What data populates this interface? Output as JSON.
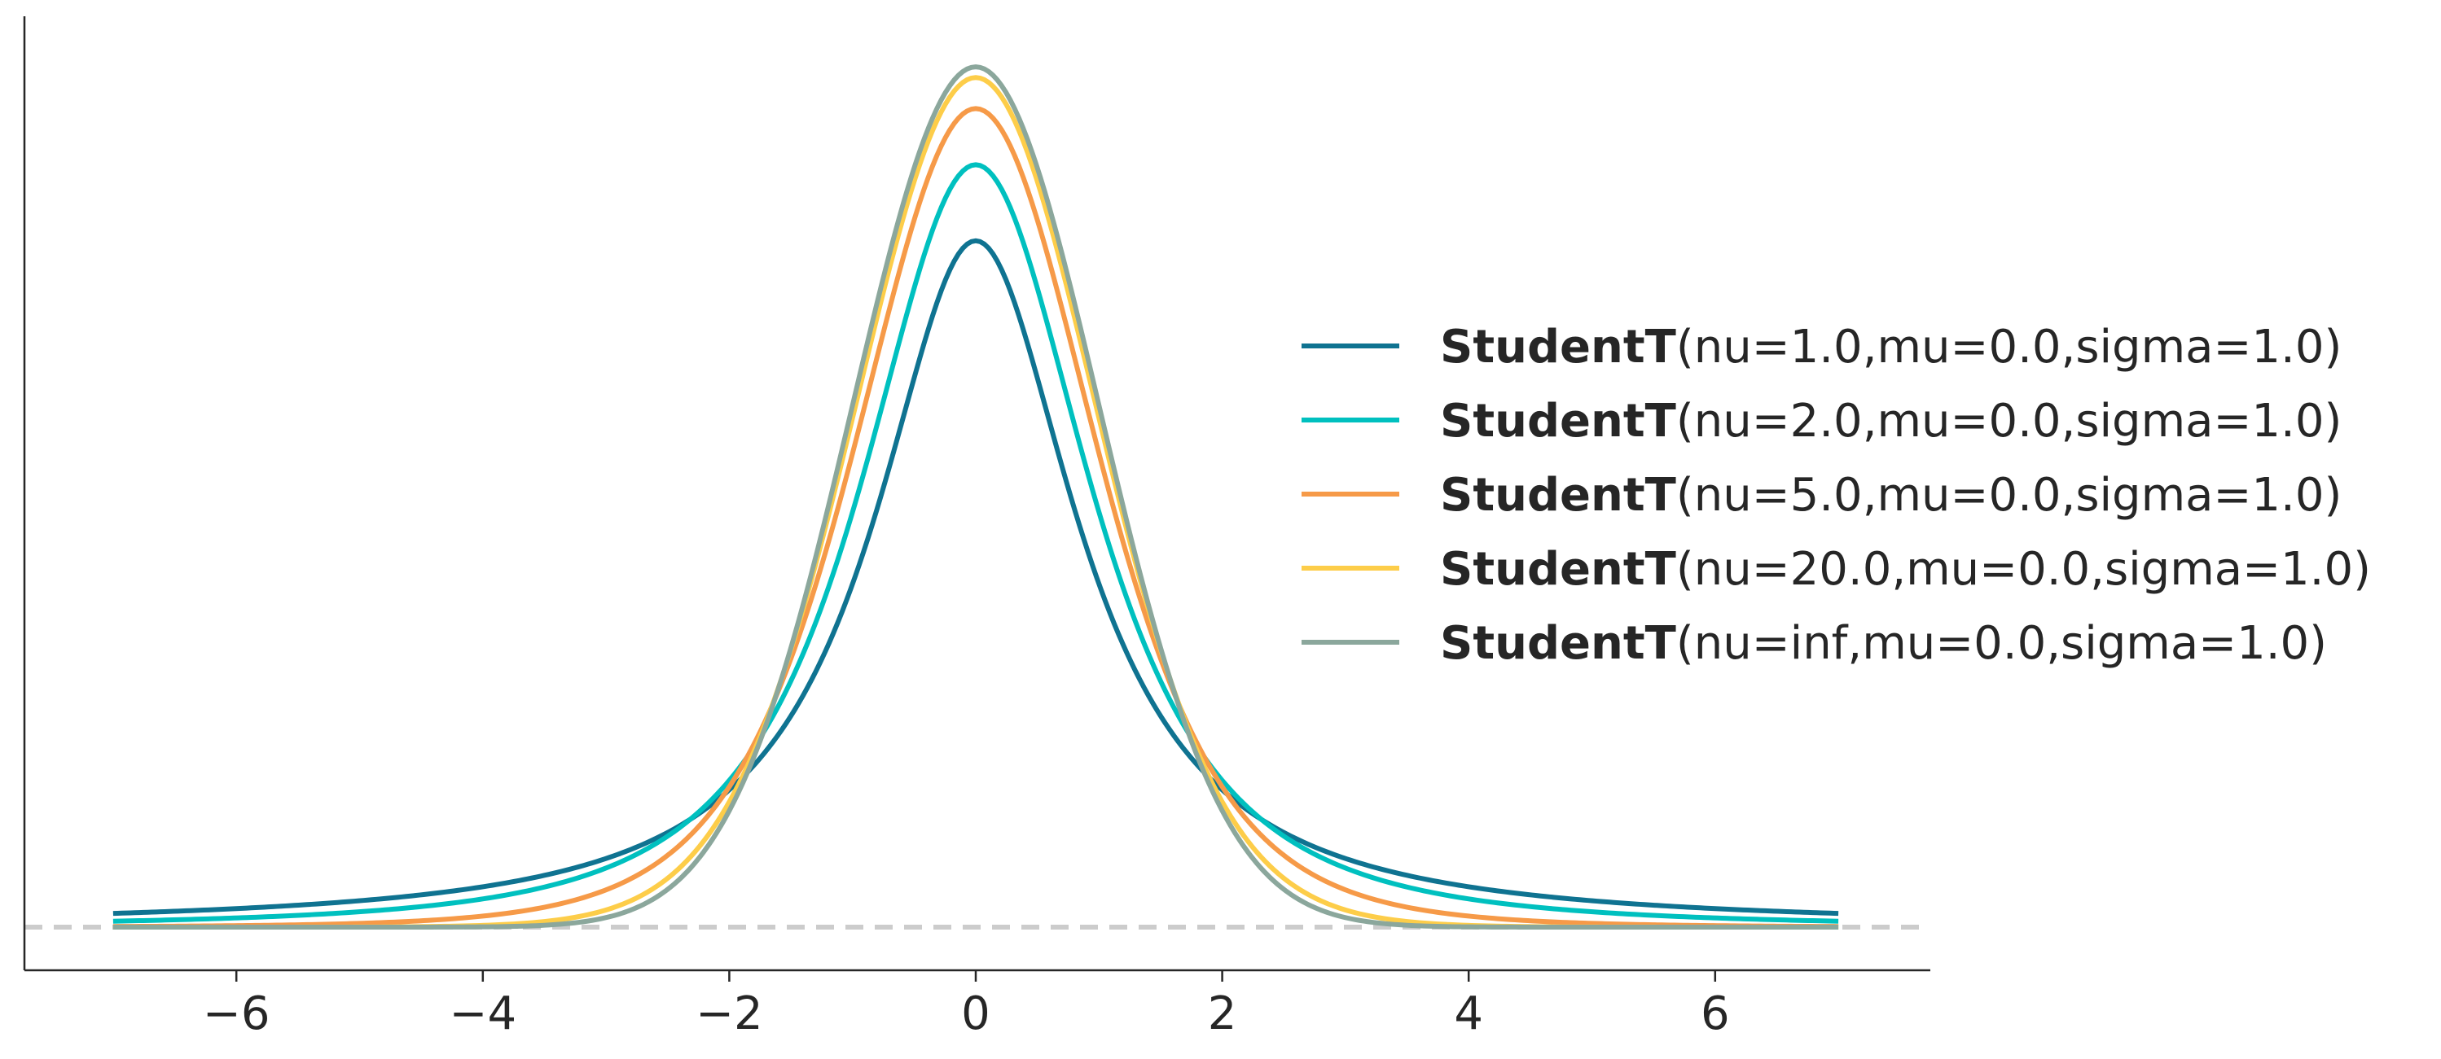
{
  "chart_data": {
    "type": "line",
    "title": "",
    "xlabel": "",
    "ylabel": "",
    "xlim": [
      -7.7,
      7.7
    ],
    "ylim": [
      -0.02,
      0.42
    ],
    "x_range": [
      -7,
      7
    ],
    "x_ticks": [
      -6,
      -4,
      -2,
      0,
      2,
      4,
      6
    ],
    "x_tick_labels": [
      "−6",
      "−4",
      "−2",
      "0",
      "2",
      "4",
      "6"
    ],
    "y_ticks_shown": false,
    "grid": false,
    "baseline": {
      "y": 0,
      "style": "dashed",
      "color": "#cccccc"
    },
    "legend_position": "right",
    "series": [
      {
        "name": "StudentT",
        "params": "(nu=1.0,mu=0.0,sigma=1.0)",
        "nu": 1,
        "mu": 0,
        "sigma": 1,
        "color": "#0f7391",
        "peak": 0.318
      },
      {
        "name": "StudentT",
        "params": "(nu=2.0,mu=0.0,sigma=1.0)",
        "nu": 2,
        "mu": 0,
        "sigma": 1,
        "color": "#00c0bf",
        "peak": 0.354
      },
      {
        "name": "StudentT",
        "params": "(nu=5.0,mu=0.0,sigma=1.0)",
        "nu": 5,
        "mu": 0,
        "sigma": 1,
        "color": "#f69a48",
        "peak": 0.38
      },
      {
        "name": "StudentT",
        "params": "(nu=20.0,mu=0.0,sigma=1.0)",
        "nu": 20,
        "mu": 0,
        "sigma": 1,
        "color": "#fdcd49",
        "peak": 0.394
      },
      {
        "name": "StudentT",
        "params": "(nu=inf,mu=0.0,sigma=1.0)",
        "nu": "inf",
        "mu": 0,
        "sigma": 1,
        "color": "#8ba79c",
        "peak": 0.399
      }
    ]
  }
}
